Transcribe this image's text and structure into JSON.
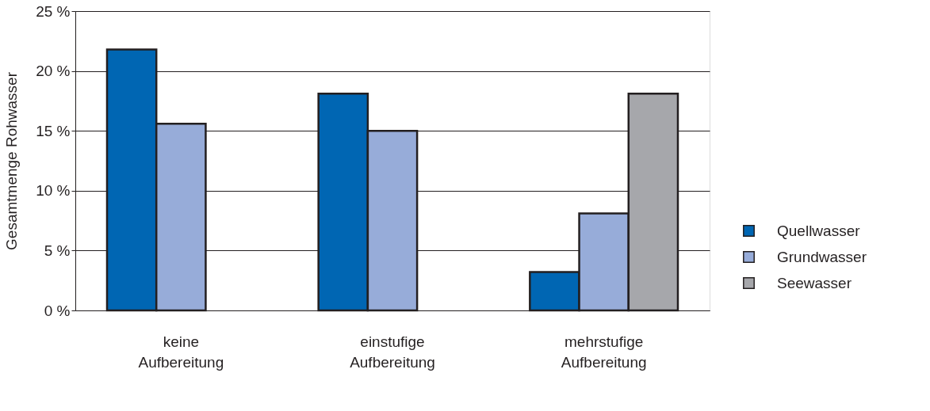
{
  "chart_data": {
    "type": "bar",
    "ylabel": "Gesamtmenge Rohwasser",
    "categories": [
      "keine Aufbereitung",
      "einstufige Aufbereitung",
      "mehrstufige Aufbereitung"
    ],
    "series": [
      {
        "name": "Quellwasser",
        "color": "#0066b3",
        "values": [
          21.8,
          18.1,
          3.2
        ]
      },
      {
        "name": "Grundwasser",
        "color": "#97acd9",
        "values": [
          15.6,
          15.0,
          8.1
        ]
      },
      {
        "name": "Seewasser",
        "color": "#a6a7ab",
        "values": [
          null,
          null,
          18.1
        ]
      }
    ],
    "ylim": [
      0,
      25
    ],
    "yticks": [
      {
        "value": 0,
        "label": "0 %"
      },
      {
        "value": 5,
        "label": "5 %"
      },
      {
        "value": 10,
        "label": "10 %"
      },
      {
        "value": 15,
        "label": "15 %"
      },
      {
        "value": 20,
        "label": "20 %"
      },
      {
        "value": 25,
        "label": "25 %"
      }
    ],
    "grid": "y",
    "legend": "right"
  }
}
